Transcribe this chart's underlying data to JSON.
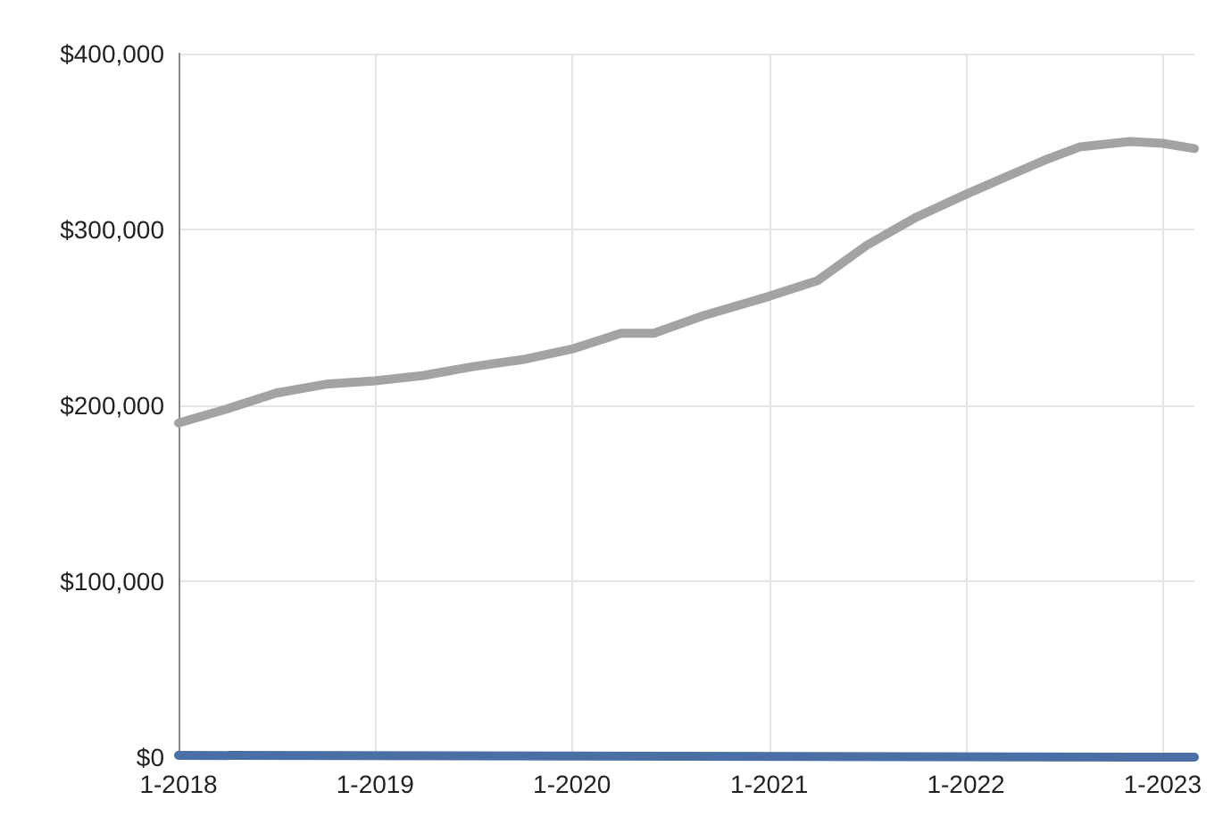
{
  "chart_data": {
    "type": "line",
    "xlim": [
      "2018-01",
      "2023-03"
    ],
    "xticks": [
      {
        "value": "2018-01",
        "label": "1-2018"
      },
      {
        "value": "2019-01",
        "label": "1-2019"
      },
      {
        "value": "2020-01",
        "label": "1-2020"
      },
      {
        "value": "2021-01",
        "label": "1-2021"
      },
      {
        "value": "2022-01",
        "label": "1-2022"
      },
      {
        "value": "2023-01",
        "label": "1-2023"
      }
    ],
    "ylim": [
      0,
      400000
    ],
    "yticks": [
      {
        "value": 0,
        "label": "$0"
      },
      {
        "value": 100000,
        "label": "$100,000"
      },
      {
        "value": 200000,
        "label": "$200,000"
      },
      {
        "value": 300000,
        "label": "$300,000"
      },
      {
        "value": 400000,
        "label": "$400,000"
      }
    ],
    "grid": true,
    "marker": "none",
    "line_style": "solid",
    "series": [
      {
        "color": "#a3a3a3",
        "x": [
          "2018-01",
          "2018-04",
          "2018-07",
          "2018-10",
          "2019-01",
          "2019-04",
          "2019-07",
          "2019-10",
          "2020-01",
          "2020-04",
          "2020-06",
          "2020-09",
          "2021-01",
          "2021-04",
          "2021-07",
          "2021-10",
          "2022-01",
          "2022-04",
          "2022-06",
          "2022-08",
          "2022-11",
          "2023-01",
          "2023-03"
        ],
        "values": [
          190000,
          198000,
          207000,
          212000,
          214000,
          217000,
          222000,
          226000,
          232000,
          241000,
          241000,
          251000,
          262000,
          271000,
          291000,
          307000,
          320000,
          332000,
          340000,
          347000,
          350000,
          349000,
          346000
        ]
      },
      {
        "color": "#4a6fa5",
        "x": [
          "2018-01",
          "2023-03"
        ],
        "values": [
          1000,
          0
        ]
      }
    ]
  }
}
